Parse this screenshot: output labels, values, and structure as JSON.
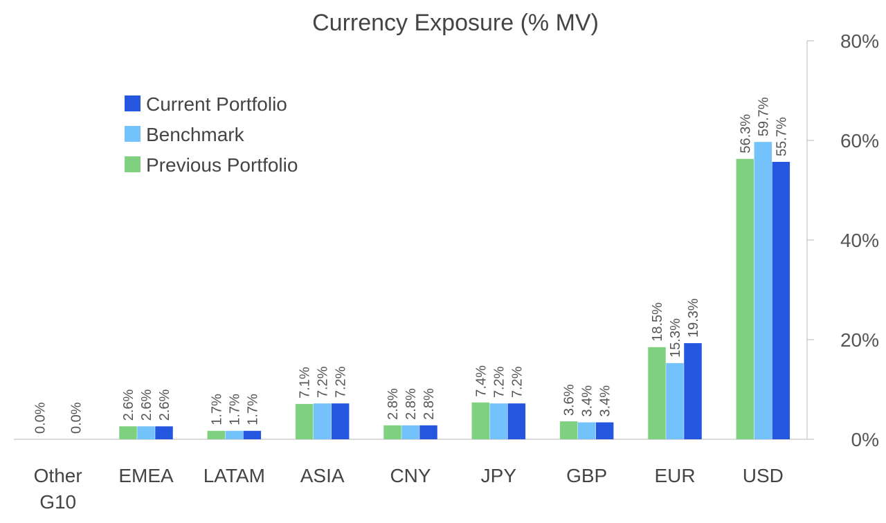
{
  "chart_data": {
    "type": "bar",
    "title": "Currency Exposure (% MV)",
    "categories": [
      [
        "Other",
        "G10"
      ],
      [
        "EMEA"
      ],
      [
        "LATAM"
      ],
      [
        "ASIA"
      ],
      [
        "CNY"
      ],
      [
        "JPY"
      ],
      [
        "GBP"
      ],
      [
        "EUR"
      ],
      [
        "USD"
      ]
    ],
    "series": [
      {
        "name": "Previous Portfolio",
        "values": [
          0.0,
          2.6,
          1.7,
          7.1,
          2.8,
          7.4,
          3.6,
          18.5,
          56.3
        ]
      },
      {
        "name": "Benchmark",
        "values": [
          null,
          2.6,
          1.7,
          7.2,
          2.8,
          7.2,
          3.4,
          15.3,
          59.7
        ]
      },
      {
        "name": "Current Portfolio",
        "values": [
          0.0,
          2.6,
          1.7,
          7.2,
          2.8,
          7.2,
          3.4,
          19.3,
          55.7
        ]
      }
    ],
    "data_labels": [
      [
        "0.0%",
        "",
        "0.0%"
      ],
      [
        "2.6%",
        "2.6%",
        "2.6%"
      ],
      [
        "1.7%",
        "1.7%",
        "1.7%"
      ],
      [
        "7.1%",
        "7.2%",
        "7.2%"
      ],
      [
        "2.8%",
        "2.8%",
        "2.8%"
      ],
      [
        "7.4%",
        "7.2%",
        "7.2%"
      ],
      [
        "3.6%",
        "3.4%",
        "3.4%"
      ],
      [
        "18.5%",
        "15.3%",
        "19.3%"
      ],
      [
        "56.3%",
        "59.7%",
        "55.7%"
      ]
    ],
    "y_ticks": [
      "0%",
      "20%",
      "40%",
      "60%",
      "80%"
    ],
    "ylim": [
      0,
      80
    ],
    "y_axis_side": "right",
    "grid": false,
    "legend": {
      "placement": "top-left",
      "order": [
        "Current Portfolio",
        "Benchmark",
        "Previous Portfolio"
      ]
    },
    "colors": {
      "Previous Portfolio": "#7fd07f",
      "Benchmark": "#73c2fb",
      "Current Portfolio": "#2456e0"
    }
  }
}
